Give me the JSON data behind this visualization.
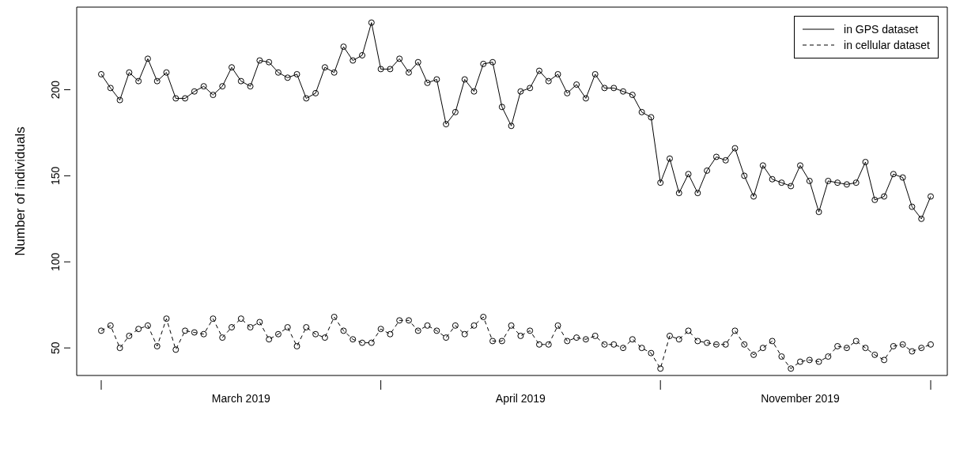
{
  "chart_data": {
    "type": "line",
    "ylabel": "Number of individuals",
    "categories": [
      null,
      null,
      null,
      null,
      null,
      null,
      null,
      null,
      null,
      null,
      null,
      null,
      null,
      null,
      null,
      "March 2019",
      null,
      null,
      null,
      null,
      null,
      null,
      null,
      null,
      null,
      null,
      null,
      null,
      null,
      null,
      null,
      null,
      null,
      null,
      null,
      null,
      null,
      null,
      null,
      null,
      null,
      null,
      null,
      null,
      null,
      "April 2019",
      null,
      null,
      null,
      null,
      null,
      null,
      null,
      null,
      null,
      null,
      null,
      null,
      null,
      null,
      null,
      null,
      null,
      null,
      null,
      null,
      null,
      null,
      null,
      null,
      null,
      null,
      null,
      null,
      null,
      "November 2019",
      null,
      null,
      null,
      null,
      null,
      null,
      null,
      null,
      null,
      null,
      null,
      null,
      null,
      null
    ],
    "series": [
      {
        "name": "in GPS dataset",
        "color": "#000000",
        "line_style": "solid",
        "values": [
          209,
          201,
          194,
          210,
          205,
          218,
          205,
          210,
          195,
          195,
          199,
          202,
          197,
          202,
          213,
          205,
          202,
          217,
          216,
          210,
          207,
          209,
          195,
          198,
          213,
          210,
          225,
          217,
          220,
          239,
          212,
          212,
          218,
          210,
          216,
          204,
          206,
          180,
          187,
          206,
          199,
          215,
          216,
          190,
          179,
          199,
          201,
          211,
          205,
          209,
          198,
          203,
          195,
          209,
          201,
          201,
          199,
          197,
          187,
          184,
          146,
          160,
          140,
          151,
          140,
          153,
          161,
          159,
          166,
          150,
          138,
          156,
          148,
          146,
          144,
          156,
          147,
          129,
          147,
          146,
          145,
          146,
          158,
          136,
          138,
          151,
          149,
          132,
          125,
          138
        ]
      },
      {
        "name": "in cellular dataset",
        "color": "#000000",
        "line_style": "dashed",
        "values": [
          60,
          63,
          50,
          57,
          61,
          63,
          51,
          67,
          49,
          60,
          59,
          58,
          67,
          56,
          62,
          67,
          62,
          65,
          55,
          58,
          62,
          51,
          62,
          58,
          56,
          68,
          60,
          55,
          53,
          53,
          61,
          58,
          66,
          66,
          60,
          63,
          60,
          56,
          63,
          58,
          63,
          68,
          54,
          54,
          63,
          57,
          60,
          52,
          52,
          63,
          54,
          56,
          55,
          57,
          52,
          52,
          50,
          55,
          50,
          47,
          38,
          57,
          55,
          60,
          54,
          53,
          52,
          52,
          60,
          52,
          46,
          50,
          54,
          45,
          38,
          42,
          43,
          42,
          45,
          51,
          50,
          54,
          50,
          46,
          43,
          51,
          52,
          48,
          50,
          52
        ]
      }
    ],
    "ylim": [
      34,
      248
    ],
    "yticks": [
      50,
      100,
      150,
      200
    ],
    "marker": "circle",
    "legend": "top right",
    "grid": false
  }
}
